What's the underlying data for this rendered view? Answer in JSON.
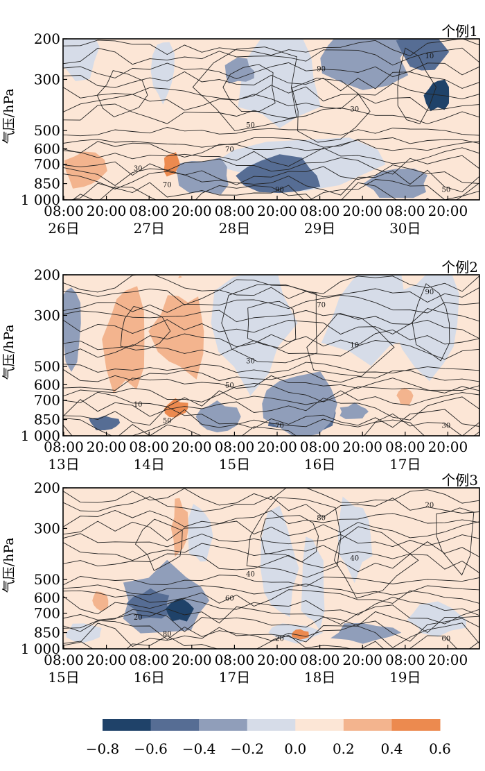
{
  "chart_data": [
    {
      "type": "heatmap",
      "title": "个例1",
      "ylabel": "气压/hPa",
      "yticks": [
        "200",
        "300",
        "500",
        "600",
        "700",
        "850",
        "1 000"
      ],
      "ytick_values": [
        200,
        300,
        500,
        600,
        700,
        850,
        1000
      ],
      "xticks_time": [
        "08:00",
        "20:00",
        "08:00",
        "20:00",
        "08:00",
        "20:00",
        "08:00",
        "20:00",
        "08:00",
        "20:00"
      ],
      "xticks_day": [
        "26日",
        "27日",
        "28日",
        "29日",
        "30日"
      ],
      "contour_labels": [
        "30",
        "50",
        "70",
        "90",
        "10"
      ],
      "grid": false
    },
    {
      "type": "heatmap",
      "title": "个例2",
      "ylabel": "气压/hPa",
      "yticks": [
        "200",
        "300",
        "500",
        "600",
        "700",
        "850",
        "1 000"
      ],
      "ytick_values": [
        200,
        300,
        500,
        600,
        700,
        850,
        1000
      ],
      "xticks_time": [
        "08:00",
        "20:00",
        "08:00",
        "20:00",
        "08:00",
        "20:00",
        "08:00",
        "20:00",
        "08:00",
        "20:00"
      ],
      "xticks_day": [
        "13日",
        "14日",
        "15日",
        "16日",
        "17日"
      ],
      "contour_labels": [
        "10",
        "30",
        "50",
        "70",
        "90"
      ],
      "grid": false
    },
    {
      "type": "heatmap",
      "title": "个例3",
      "ylabel": "气压/hPa",
      "yticks": [
        "200",
        "300",
        "500",
        "600",
        "700",
        "850",
        "1 000"
      ],
      "ytick_values": [
        200,
        300,
        500,
        600,
        700,
        850,
        1000
      ],
      "xticks_time": [
        "08:00",
        "20:00",
        "08:00",
        "20:00",
        "08:00",
        "20:00",
        "08:00",
        "20:00",
        "08:00",
        "20:00"
      ],
      "xticks_day": [
        "15日",
        "16日",
        "17日",
        "18日",
        "19日"
      ],
      "contour_labels": [
        "20",
        "40",
        "60",
        "80"
      ],
      "grid": false
    }
  ],
  "colorbar": {
    "colors": [
      "#1f4269",
      "#566d94",
      "#909eba",
      "#d6dce8",
      "#fce6d6",
      "#f3b48e",
      "#ec8a4f"
    ],
    "tick_labels": [
      "−0.8",
      "−0.6",
      "−0.4",
      "−0.2",
      "0.0",
      "0.2",
      "0.4",
      "0.6"
    ],
    "tick_values": [
      -0.8,
      -0.6,
      -0.4,
      -0.2,
      0.0,
      0.2,
      0.4,
      0.6
    ]
  },
  "colors": {
    "background_positive": "#fce6d6",
    "background_negative": "#d6dce8",
    "contour_line": "#222222",
    "frame": "#000000"
  }
}
